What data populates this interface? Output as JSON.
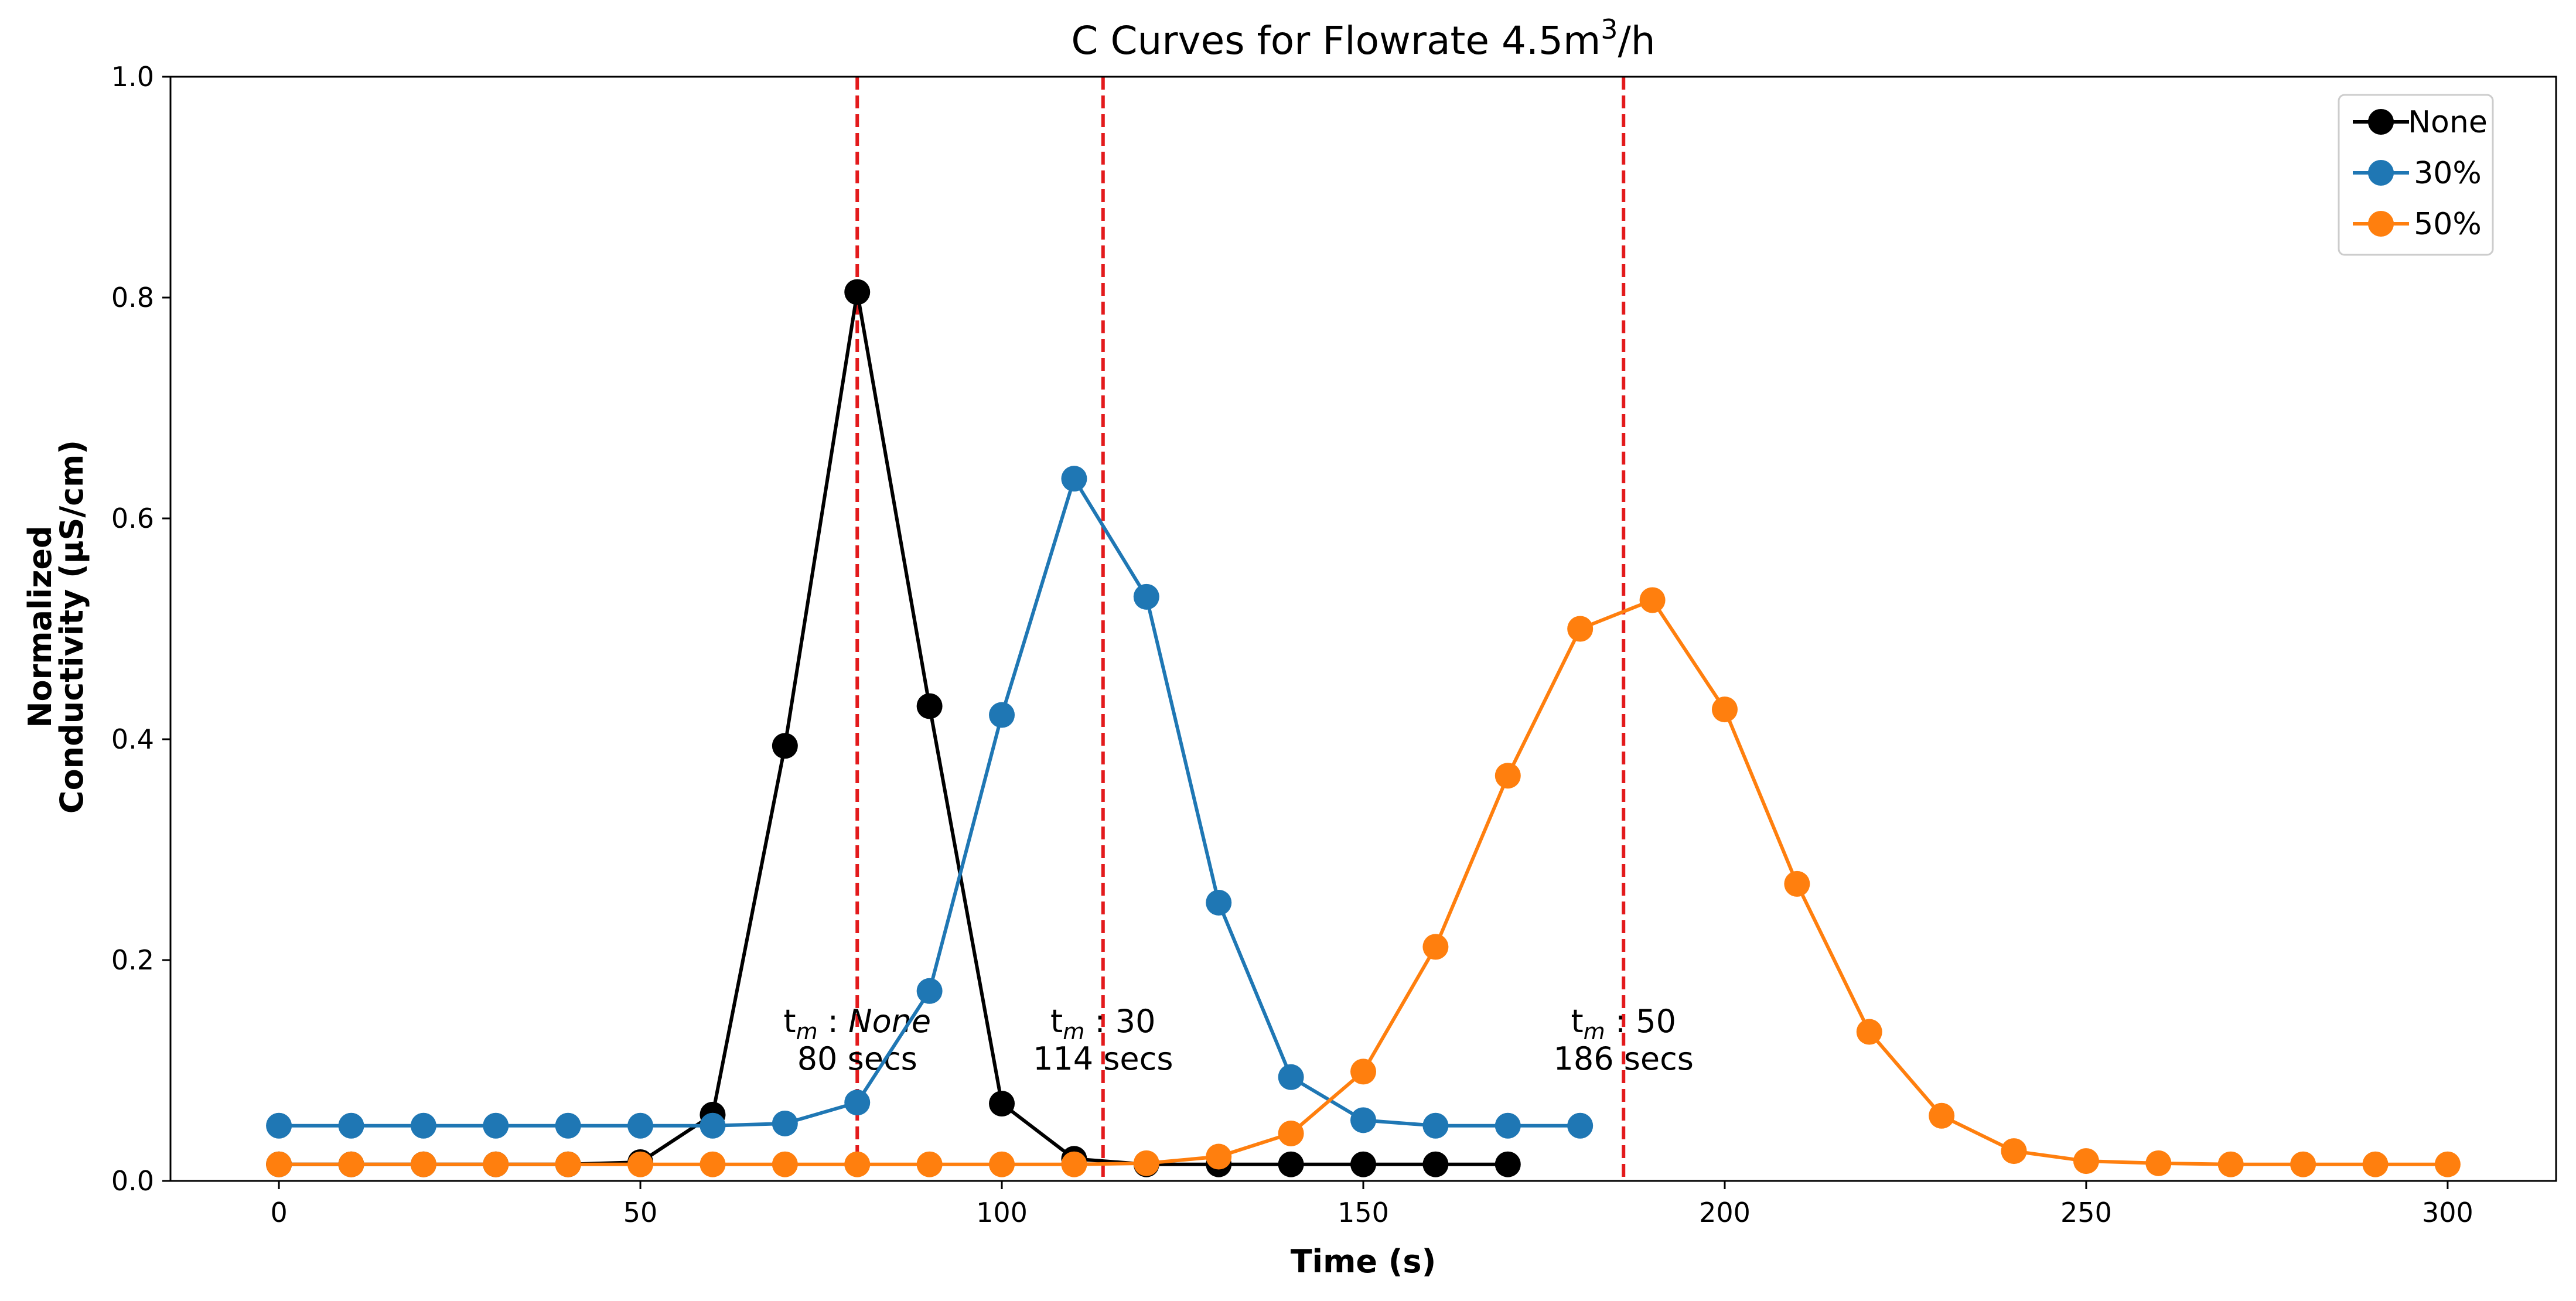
{
  "chart_data": {
    "type": "line",
    "title": "C Curves for Flowrate 4.5m³/h",
    "title_main": "C Curves for Flowrate 4.5m",
    "title_sup": "3",
    "title_tail": "/h",
    "xlabel": "Time (s)",
    "ylabel_line1": "Normalized",
    "ylabel_line2": "Conductivity (µS/cm)",
    "xlim": [
      -15,
      315
    ],
    "ylim": [
      0,
      1.0
    ],
    "xticks": [
      0,
      50,
      100,
      150,
      200,
      250,
      300
    ],
    "yticks": [
      0.0,
      0.2,
      0.4,
      0.6,
      0.8,
      1.0
    ],
    "ytick_labels": [
      "0.0",
      "0.2",
      "0.4",
      "0.6",
      "0.8",
      "1.0"
    ],
    "grid": false,
    "legend_position": "top-right",
    "series": [
      {
        "name": "None",
        "color": "#000000",
        "x": [
          0,
          10,
          20,
          30,
          40,
          50,
          60,
          70,
          80,
          90,
          100,
          110,
          120,
          130,
          140,
          150,
          160,
          170
        ],
        "y": [
          0.015,
          0.015,
          0.015,
          0.015,
          0.015,
          0.017,
          0.06,
          0.394,
          0.805,
          0.43,
          0.07,
          0.02,
          0.015,
          0.015,
          0.015,
          0.015,
          0.015,
          0.015
        ]
      },
      {
        "name": "30%",
        "color": "#1f77b4",
        "x": [
          0,
          10,
          20,
          30,
          40,
          50,
          60,
          70,
          80,
          90,
          100,
          110,
          120,
          130,
          140,
          150,
          160,
          170,
          180
        ],
        "y": [
          0.05,
          0.05,
          0.05,
          0.05,
          0.05,
          0.05,
          0.05,
          0.052,
          0.071,
          0.172,
          0.422,
          0.636,
          0.529,
          0.252,
          0.094,
          0.055,
          0.05,
          0.05,
          0.05
        ]
      },
      {
        "name": "50%",
        "color": "#ff7f0e",
        "x": [
          0,
          10,
          20,
          30,
          40,
          50,
          60,
          70,
          80,
          90,
          100,
          110,
          120,
          130,
          140,
          150,
          160,
          170,
          180,
          190,
          200,
          210,
          220,
          230,
          240,
          250,
          260,
          270,
          280,
          290,
          300
        ],
        "y": [
          0.015,
          0.015,
          0.015,
          0.015,
          0.015,
          0.015,
          0.015,
          0.015,
          0.015,
          0.015,
          0.015,
          0.015,
          0.016,
          0.022,
          0.043,
          0.099,
          0.212,
          0.367,
          0.5,
          0.526,
          0.427,
          0.269,
          0.135,
          0.059,
          0.027,
          0.018,
          0.016,
          0.015,
          0.015,
          0.015,
          0.015
        ]
      }
    ],
    "vlines": [
      {
        "x": 80,
        "color": "#e31a1c",
        "label_line1_prefix": "t",
        "label_sub": "m",
        "label_sep": " : ",
        "label_name": "None",
        "label_italic": true,
        "label_line2": "80 secs"
      },
      {
        "x": 114,
        "color": "#e31a1c",
        "label_line1_prefix": "t",
        "label_sub": "m",
        "label_sep": " : ",
        "label_name": "30",
        "label_italic": false,
        "label_line2": "114 secs"
      },
      {
        "x": 186,
        "color": "#e31a1c",
        "label_line1_prefix": "t",
        "label_sub": "m",
        "label_sep": " : ",
        "label_name": "50",
        "label_italic": false,
        "label_line2": "186 secs"
      }
    ],
    "legend": [
      "None",
      "30%",
      "50%"
    ]
  }
}
